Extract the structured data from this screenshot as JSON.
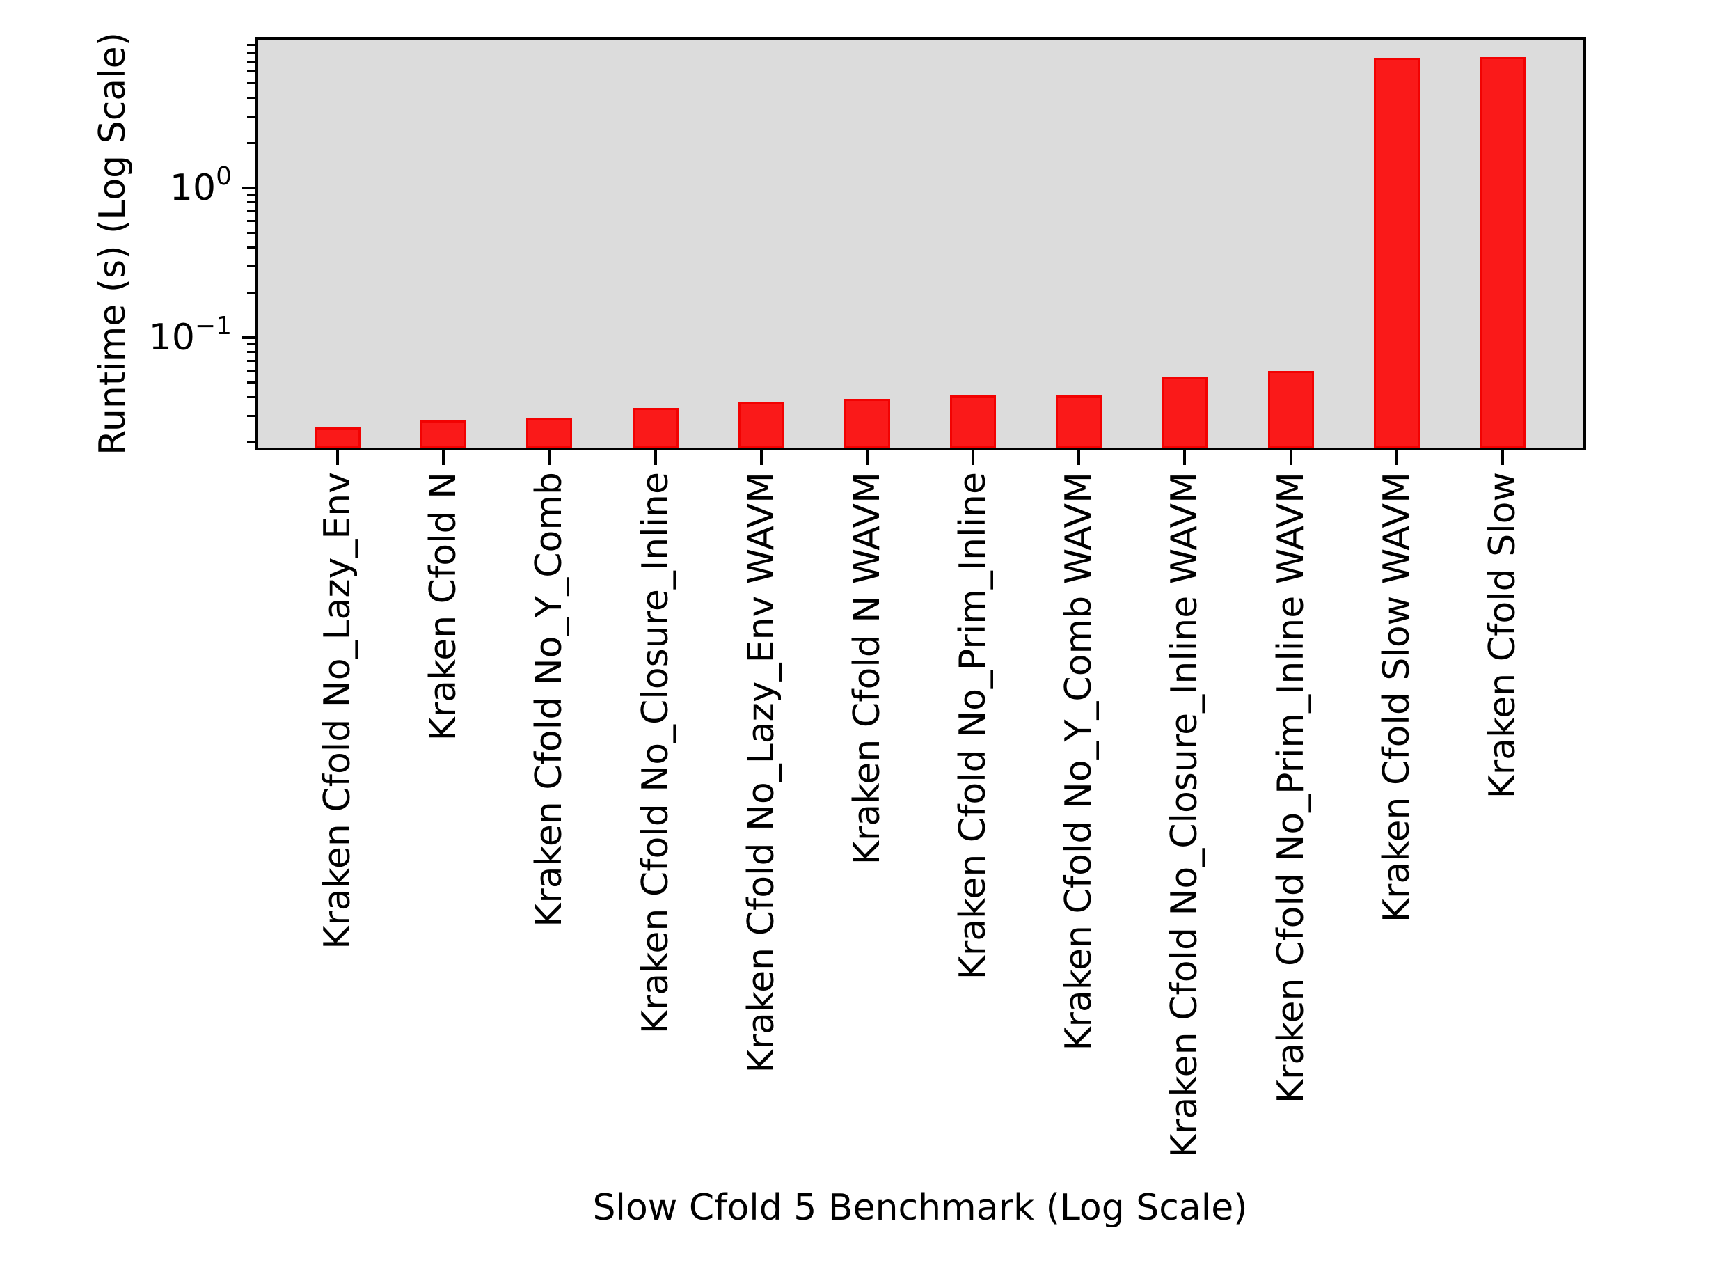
{
  "figure": {
    "background_color": "#ffffff",
    "plot_background_color": "#dcdcdc",
    "bar_fill_color": "#fa1919",
    "bar_edge_color": "#f20202",
    "axis_color": "#000000",
    "ylabel": "Runtime (s) (Log Scale)",
    "xlabel": "Slow Cfold 5 Benchmark (Log Scale)"
  },
  "chart_data": {
    "type": "bar",
    "title": "",
    "xlabel": "Slow Cfold 5 Benchmark (Log Scale)",
    "ylabel": "Runtime (s) (Log Scale)",
    "yscale": "log",
    "ylim": [
      0.018,
      10
    ],
    "grid": false,
    "legend": {
      "visible": true,
      "entries": [],
      "position": "upper-right"
    },
    "categories": [
      "Kraken Cfold No_Lazy_Env",
      "Kraken Cfold N",
      "Kraken Cfold No_Y_Comb",
      "Kraken Cfold No_Closure_Inline",
      "Kraken Cfold No_Lazy_Env WAVM",
      "Kraken Cfold N WAVM",
      "Kraken Cfold No_Prim_Inline",
      "Kraken Cfold No_Y_Comb WAVM",
      "Kraken Cfold No_Closure_Inline WAVM",
      "Kraken Cfold No_Prim_Inline WAVM",
      "Kraken Cfold Slow WAVM",
      "Kraken Cfold Slow"
    ],
    "values": [
      0.025,
      0.028,
      0.029,
      0.034,
      0.037,
      0.039,
      0.041,
      0.041,
      0.055,
      0.06,
      7.4,
      7.5
    ],
    "y_major_ticks": [
      {
        "value": 1,
        "base": "10",
        "exp": "0"
      },
      {
        "value": 0.1,
        "base": "10",
        "exp": "−1"
      }
    ],
    "y_minor_ticks": [
      0.02,
      0.03,
      0.04,
      0.05,
      0.06,
      0.07,
      0.08,
      0.09,
      0.2,
      0.3,
      0.4,
      0.5,
      0.6,
      0.7,
      0.8,
      0.9,
      2,
      3,
      4,
      5,
      6,
      7,
      8,
      9
    ]
  }
}
